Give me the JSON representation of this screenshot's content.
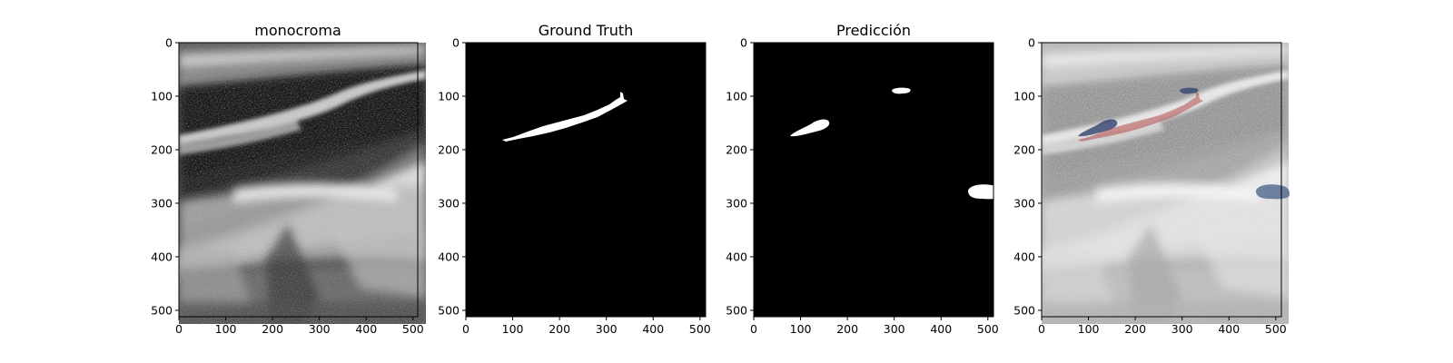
{
  "figure": {
    "panels": [
      {
        "id": "monocroma",
        "title": "monocroma",
        "x_ticks": [
          "0",
          "100",
          "200",
          "300",
          "400",
          "500"
        ],
        "y_ticks": [
          "0",
          "100",
          "200",
          "300",
          "400",
          "500"
        ]
      },
      {
        "id": "ground-truth",
        "title": "Ground Truth",
        "x_ticks": [
          "0",
          "100",
          "200",
          "300",
          "400",
          "500"
        ],
        "y_ticks": [
          "0",
          "100",
          "200",
          "300",
          "400",
          "500"
        ]
      },
      {
        "id": "prediccion",
        "title": "Predicción",
        "x_ticks": [
          "0",
          "100",
          "200",
          "300",
          "400",
          "500"
        ],
        "y_ticks": [
          "0",
          "100",
          "200",
          "300",
          "400",
          "500"
        ]
      },
      {
        "id": "overlay",
        "title": "",
        "x_ticks": [
          "0",
          "100",
          "200",
          "300",
          "400",
          "500"
        ],
        "y_ticks": [
          "0",
          "100",
          "200",
          "300",
          "400",
          "500"
        ]
      }
    ],
    "colors": {
      "mask_foreground": "#ffffff",
      "mask_background": "#000000",
      "ground_truth_overlay": "#b44a4a",
      "prediction_overlay": "#2a3f6e"
    }
  }
}
